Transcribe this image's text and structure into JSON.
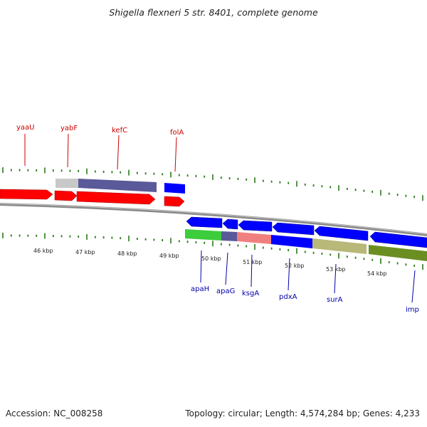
{
  "title": "Shigella flexneri 5 str. 8401, complete genome",
  "footer": {
    "accession": "Accession: NC_008258",
    "topology": "Topology: circular; Length: 4,574,284 bp; Genes: 4,233"
  },
  "colors": {
    "forward_gene": "#ff0000",
    "reverse_gene": "#0000ff",
    "tick": "#2a7a1a",
    "backbone": "#808080",
    "upper_label": "#cc0000",
    "lower_label": "#0000aa"
  },
  "kbp_labels": [
    "46 kbp",
    "47 kbp",
    "48 kbp",
    "49 kbp",
    "50 kbp",
    "51 kbp",
    "52 kbp",
    "53 kbp",
    "54 kbp"
  ],
  "genes_upper": [
    {
      "name": "yaaU",
      "color": "#cc0000"
    },
    {
      "name": "yabF",
      "color": "#cc0000"
    },
    {
      "name": "kefC",
      "color": "#cc0000"
    },
    {
      "name": "folA",
      "color": "#cc0000"
    }
  ],
  "genes_lower": [
    {
      "name": "apaH",
      "color": "#0000aa"
    },
    {
      "name": "apaG",
      "color": "#0000aa"
    },
    {
      "name": "ksgA",
      "color": "#0000aa"
    },
    {
      "name": "pdxA",
      "color": "#0000aa"
    },
    {
      "name": "surA",
      "color": "#0000aa"
    },
    {
      "name": "imp",
      "color": "#0000aa"
    }
  ],
  "feature_colors": {
    "cog_gray": "#c0c0c0",
    "cog_slate": "#5a5a9a",
    "cog_green": "#3ccc3c",
    "cog_salmon": "#f08080",
    "cog_khaki": "#b8b878",
    "cog_olive": "#6b8e23"
  }
}
